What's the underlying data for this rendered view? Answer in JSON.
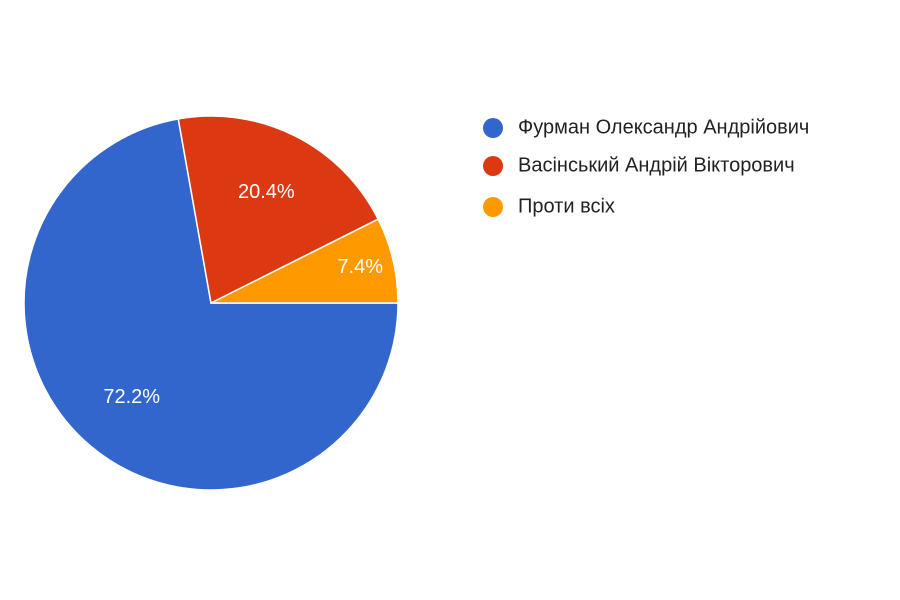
{
  "chart_data": {
    "type": "pie",
    "categories": [
      "Фурман Олександр Андрійович",
      "Васінський Андрій Вікторович",
      "Проти всіх"
    ],
    "values": [
      72.2,
      20.4,
      7.4
    ],
    "value_labels": [
      "72.2%",
      "20.4%",
      "7.4%"
    ],
    "colors": [
      "#3366cc",
      "#dc3912",
      "#ff9900"
    ],
    "legend": "right"
  }
}
